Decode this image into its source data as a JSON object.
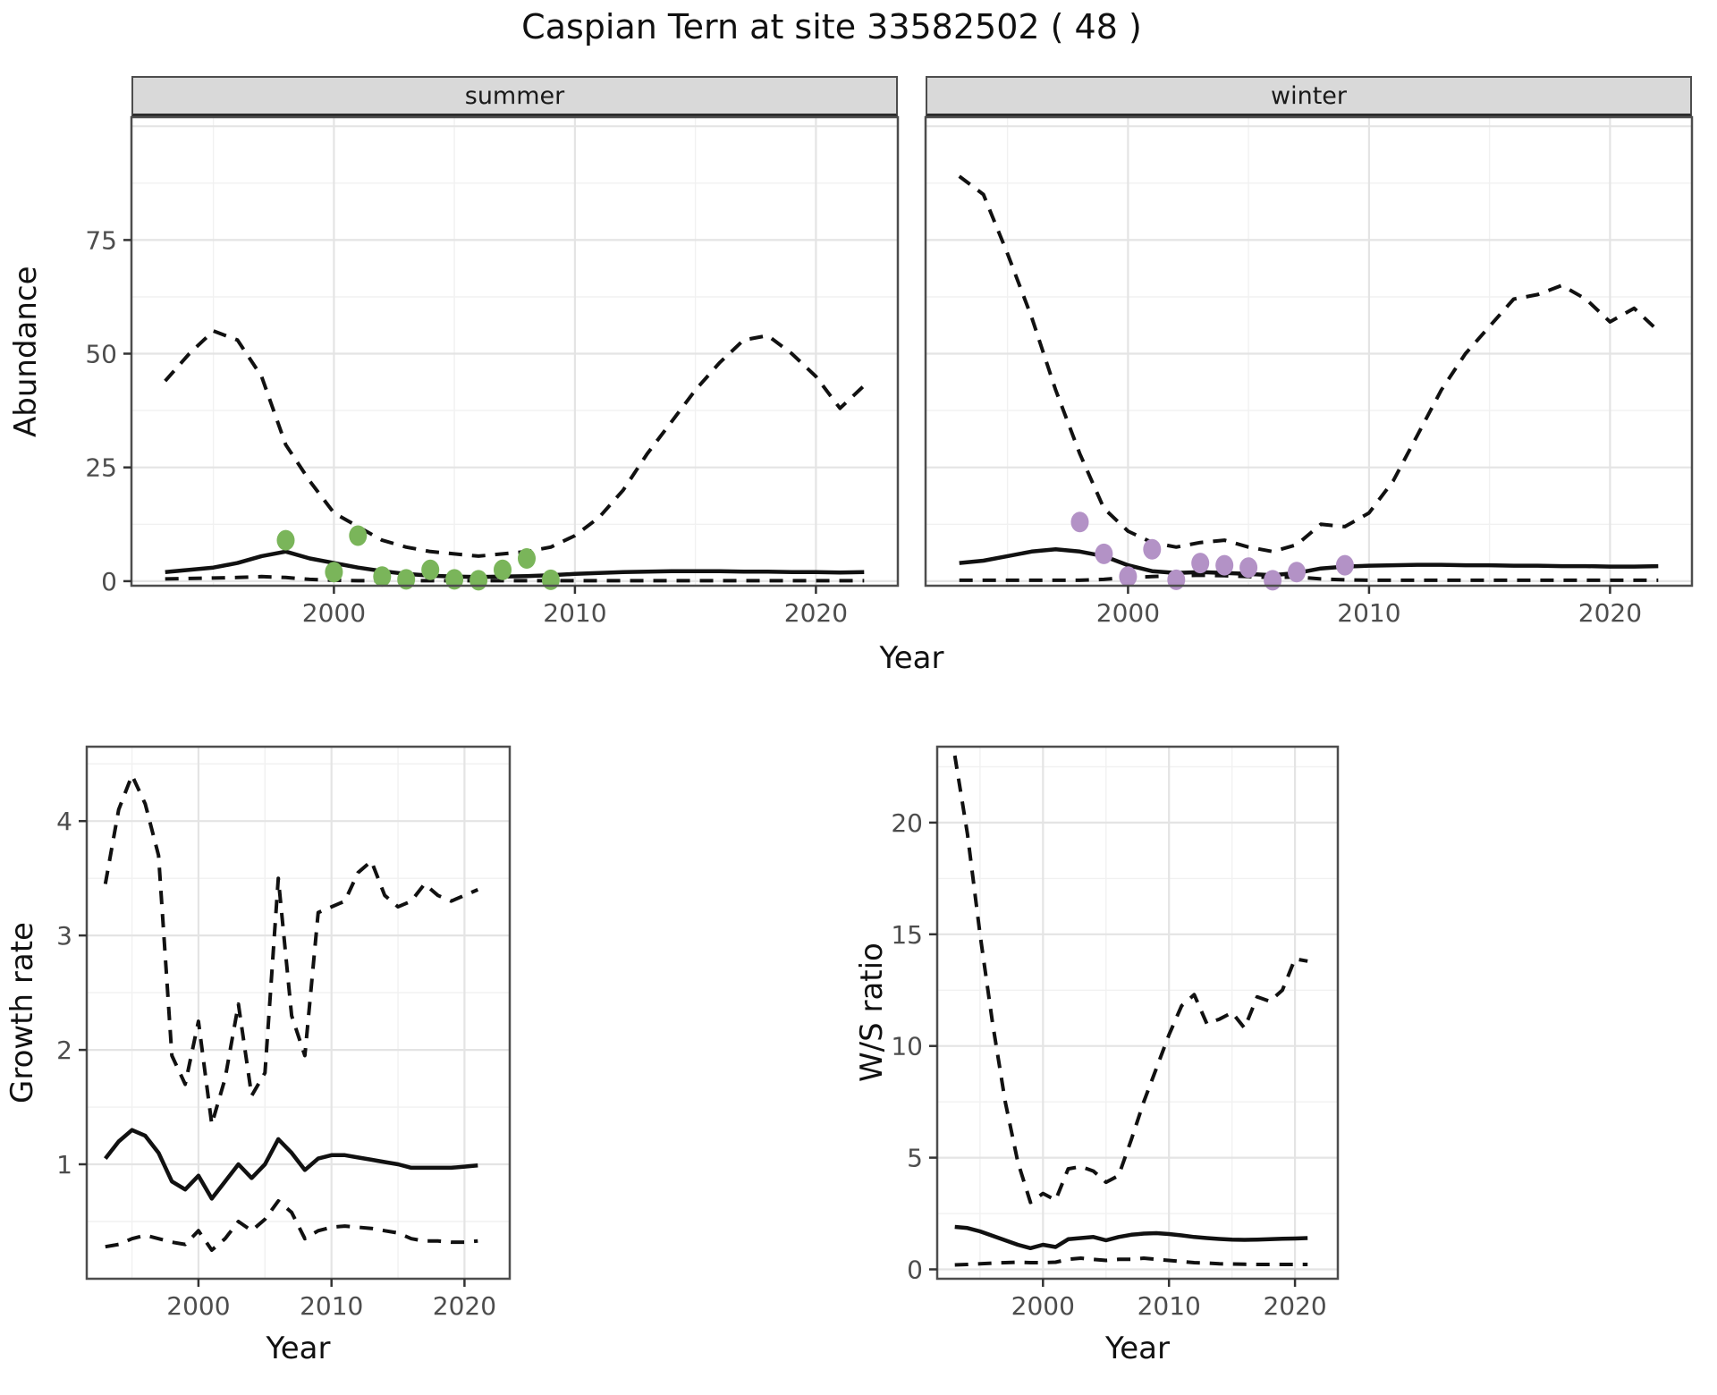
{
  "title": "Caspian Tern at site 33582502 ( 48 )",
  "colors": {
    "summer_points": "#7ab55a",
    "winter_points": "#b392c6",
    "line": "#111111",
    "grid_major": "#e4e4e4",
    "grid_minor": "#f1f1f1",
    "panel_border": "#4d4d4d",
    "strip_background": "#d9d9d9",
    "tick_text": "#4d4d4d"
  },
  "labels": {
    "top_xlabel": "Year"
  },
  "chart_data": [
    {
      "id": "summer",
      "type": "line",
      "facet": "summer",
      "xlabel": "Year",
      "ylabel": "Abundance",
      "x_range": [
        1991.6,
        2023.4
      ],
      "y_range": [
        -1,
        102
      ],
      "x_ticks": [
        2000,
        2010,
        2020
      ],
      "x_minor": [
        1995,
        2005,
        2015
      ],
      "y_ticks": [
        0,
        25,
        50,
        75
      ],
      "y_grid_major": [
        0,
        25,
        50,
        75,
        100
      ],
      "y_minor": [
        12.5,
        37.5,
        62.5,
        87.5
      ],
      "years": [
        1993,
        1994,
        1995,
        1996,
        1997,
        1998,
        1999,
        2000,
        2001,
        2002,
        2003,
        2004,
        2005,
        2006,
        2007,
        2008,
        2009,
        2010,
        2011,
        2012,
        2013,
        2014,
        2015,
        2016,
        2017,
        2018,
        2019,
        2020,
        2021,
        2022
      ],
      "series": [
        {
          "name": "upper_ci",
          "linetype": "dashed",
          "values": [
            44,
            50,
            55,
            53,
            45,
            30,
            22,
            15,
            12,
            9,
            7.5,
            6.5,
            6,
            5.5,
            6,
            6.5,
            7.5,
            10,
            14,
            20,
            28,
            35,
            42,
            48,
            53,
            54,
            50,
            45,
            38,
            43
          ]
        },
        {
          "name": "median",
          "linetype": "solid",
          "values": [
            2,
            2.5,
            3,
            4,
            5.5,
            6.5,
            5,
            4,
            3,
            2.2,
            1.6,
            1.2,
            1,
            0.9,
            1,
            1.1,
            1.3,
            1.6,
            1.8,
            2,
            2.1,
            2.2,
            2.2,
            2.2,
            2.1,
            2.1,
            2,
            2,
            1.9,
            2
          ]
        },
        {
          "name": "lower_ci",
          "linetype": "dashed",
          "values": [
            0.5,
            0.6,
            0.7,
            0.8,
            1,
            0.8,
            0.4,
            0.2,
            0.1,
            0.1,
            0.1,
            0.1,
            0.1,
            0.1,
            0.1,
            0.1,
            0.1,
            0.1,
            0.1,
            0.1,
            0.1,
            0.1,
            0.1,
            0.1,
            0.1,
            0.1,
            0.1,
            0.1,
            0.1,
            0.1
          ]
        }
      ],
      "points": {
        "name": "summer_observations",
        "color": "#7ab55a",
        "x": [
          1998,
          2000,
          2001,
          2002,
          2003,
          2004,
          2005,
          2006,
          2007,
          2008,
          2009
        ],
        "y": [
          9,
          2,
          10,
          1,
          0.4,
          2.5,
          0.4,
          0.2,
          2.5,
          5,
          0.3
        ]
      }
    },
    {
      "id": "winter",
      "type": "line",
      "facet": "winter",
      "xlabel": "Year",
      "ylabel": "Abundance",
      "x_range": [
        1991.6,
        2023.4
      ],
      "y_range": [
        -1,
        102
      ],
      "x_ticks": [
        2000,
        2010,
        2020
      ],
      "x_minor": [
        1995,
        2005,
        2015
      ],
      "y_ticks": [],
      "y_grid_major": [
        0,
        25,
        50,
        75,
        100
      ],
      "y_minor": [
        12.5,
        37.5,
        62.5,
        87.5
      ],
      "years": [
        1993,
        1994,
        1995,
        1996,
        1997,
        1998,
        1999,
        2000,
        2001,
        2002,
        2003,
        2004,
        2005,
        2006,
        2007,
        2008,
        2009,
        2010,
        2011,
        2012,
        2013,
        2014,
        2015,
        2016,
        2017,
        2018,
        2019,
        2020,
        2021,
        2022
      ],
      "series": [
        {
          "name": "upper_ci",
          "linetype": "dashed",
          "values": [
            89,
            85,
            72,
            58,
            42,
            28,
            16,
            11,
            8.5,
            7.5,
            8.5,
            9,
            7.5,
            6.5,
            8,
            12.5,
            12,
            15,
            22,
            32,
            42,
            50,
            56,
            62,
            63,
            65,
            62,
            57,
            60,
            55
          ]
        },
        {
          "name": "median",
          "linetype": "solid",
          "values": [
            4,
            4.5,
            5.5,
            6.5,
            7,
            6.5,
            5.5,
            3.5,
            2.2,
            1.8,
            2,
            1.8,
            1.6,
            1.3,
            1.8,
            2.8,
            3.2,
            3.4,
            3.5,
            3.6,
            3.6,
            3.5,
            3.5,
            3.4,
            3.4,
            3.3,
            3.3,
            3.2,
            3.2,
            3.3
          ]
        },
        {
          "name": "lower_ci",
          "linetype": "dashed",
          "values": [
            0.2,
            0.2,
            0.2,
            0.2,
            0.2,
            0.2,
            0.4,
            0.8,
            1,
            1.2,
            1.3,
            1.2,
            1,
            0.8,
            0.9,
            0.5,
            0.3,
            0.2,
            0.2,
            0.2,
            0.2,
            0.2,
            0.2,
            0.2,
            0.2,
            0.2,
            0.2,
            0.2,
            0.2,
            0.2
          ]
        }
      ],
      "points": {
        "name": "winter_observations",
        "color": "#b392c6",
        "x": [
          1998,
          1999,
          2000,
          2001,
          2002,
          2003,
          2004,
          2005,
          2006,
          2007,
          2009
        ],
        "y": [
          13,
          6,
          1,
          7,
          0.3,
          4,
          3.5,
          3,
          0.2,
          2,
          3.5
        ]
      }
    },
    {
      "id": "growth",
      "type": "line",
      "facet": null,
      "xlabel": "Year",
      "ylabel": "Growth rate",
      "x_range": [
        1991.6,
        2023.4
      ],
      "y_range": [
        0,
        4.65
      ],
      "x_ticks": [
        2000,
        2010,
        2020
      ],
      "x_minor": [
        1995,
        2005,
        2015
      ],
      "y_ticks": [
        1,
        2,
        3,
        4
      ],
      "y_grid_major": [
        1,
        2,
        3,
        4
      ],
      "y_minor": [
        0.5,
        1.5,
        2.5,
        3.5,
        4.5
      ],
      "years": [
        1993,
        1994,
        1995,
        1996,
        1997,
        1998,
        1999,
        2000,
        2001,
        2002,
        2003,
        2004,
        2005,
        2006,
        2007,
        2008,
        2009,
        2010,
        2011,
        2012,
        2013,
        2014,
        2015,
        2016,
        2017,
        2018,
        2019,
        2020,
        2021
      ],
      "series": [
        {
          "name": "upper_ci",
          "linetype": "dashed",
          "values": [
            3.45,
            4.1,
            4.4,
            4.15,
            3.7,
            1.95,
            1.7,
            2.25,
            1.35,
            1.75,
            2.4,
            1.6,
            1.8,
            3.5,
            2.3,
            1.95,
            3.2,
            3.25,
            3.3,
            3.55,
            3.65,
            3.35,
            3.25,
            3.3,
            3.45,
            3.35,
            3.3,
            3.35,
            3.4
          ]
        },
        {
          "name": "median",
          "linetype": "solid",
          "values": [
            1.05,
            1.2,
            1.3,
            1.25,
            1.1,
            0.85,
            0.78,
            0.9,
            0.7,
            0.85,
            1.0,
            0.88,
            1.0,
            1.22,
            1.1,
            0.95,
            1.05,
            1.08,
            1.08,
            1.06,
            1.04,
            1.02,
            1.0,
            0.97,
            0.97,
            0.97,
            0.97,
            0.98,
            0.99
          ]
        },
        {
          "name": "lower_ci",
          "linetype": "dashed",
          "values": [
            0.28,
            0.3,
            0.35,
            0.38,
            0.35,
            0.32,
            0.3,
            0.42,
            0.25,
            0.35,
            0.5,
            0.42,
            0.52,
            0.68,
            0.58,
            0.35,
            0.42,
            0.45,
            0.46,
            0.45,
            0.44,
            0.42,
            0.4,
            0.35,
            0.33,
            0.33,
            0.32,
            0.32,
            0.33
          ]
        }
      ],
      "points": null
    },
    {
      "id": "ws",
      "type": "line",
      "facet": null,
      "xlabel": "Year",
      "ylabel": "W/S ratio",
      "x_range": [
        1991.6,
        2023.4
      ],
      "y_range": [
        -0.42,
        23.4
      ],
      "x_ticks": [
        2000,
        2010,
        2020
      ],
      "x_minor": [
        1995,
        2005,
        2015
      ],
      "y_ticks": [
        0,
        5,
        10,
        15,
        20
      ],
      "y_grid_major": [
        0,
        5,
        10,
        15,
        20
      ],
      "y_minor": [
        2.5,
        7.5,
        12.5,
        17.5,
        22.5
      ],
      "years": [
        1993,
        1994,
        1995,
        1996,
        1997,
        1998,
        1999,
        2000,
        2001,
        2002,
        2003,
        2004,
        2005,
        2006,
        2007,
        2008,
        2009,
        2010,
        2011,
        2012,
        2013,
        2014,
        2015,
        2016,
        2017,
        2018,
        2019,
        2020,
        2021
      ],
      "series": [
        {
          "name": "upper_ci",
          "linetype": "dashed",
          "values": [
            23,
            19.5,
            15,
            11,
            7.5,
            4.8,
            3.0,
            3.4,
            3.1,
            4.5,
            4.6,
            4.4,
            3.9,
            4.2,
            5.8,
            7.5,
            9,
            10.5,
            11.8,
            12.3,
            11,
            11.2,
            11.5,
            10.8,
            12.2,
            12,
            12.5,
            13.9,
            13.8
          ]
        },
        {
          "name": "median",
          "linetype": "solid",
          "values": [
            1.9,
            1.85,
            1.7,
            1.5,
            1.3,
            1.1,
            0.95,
            1.1,
            1.0,
            1.35,
            1.4,
            1.45,
            1.3,
            1.45,
            1.55,
            1.6,
            1.62,
            1.58,
            1.52,
            1.45,
            1.4,
            1.36,
            1.33,
            1.32,
            1.33,
            1.35,
            1.37,
            1.38,
            1.4
          ]
        },
        {
          "name": "lower_ci",
          "linetype": "dashed",
          "values": [
            0.2,
            0.22,
            0.25,
            0.28,
            0.3,
            0.32,
            0.3,
            0.3,
            0.32,
            0.45,
            0.5,
            0.45,
            0.4,
            0.45,
            0.45,
            0.5,
            0.45,
            0.4,
            0.35,
            0.3,
            0.28,
            0.25,
            0.24,
            0.23,
            0.22,
            0.22,
            0.22,
            0.22,
            0.22
          ]
        }
      ],
      "points": null
    }
  ]
}
